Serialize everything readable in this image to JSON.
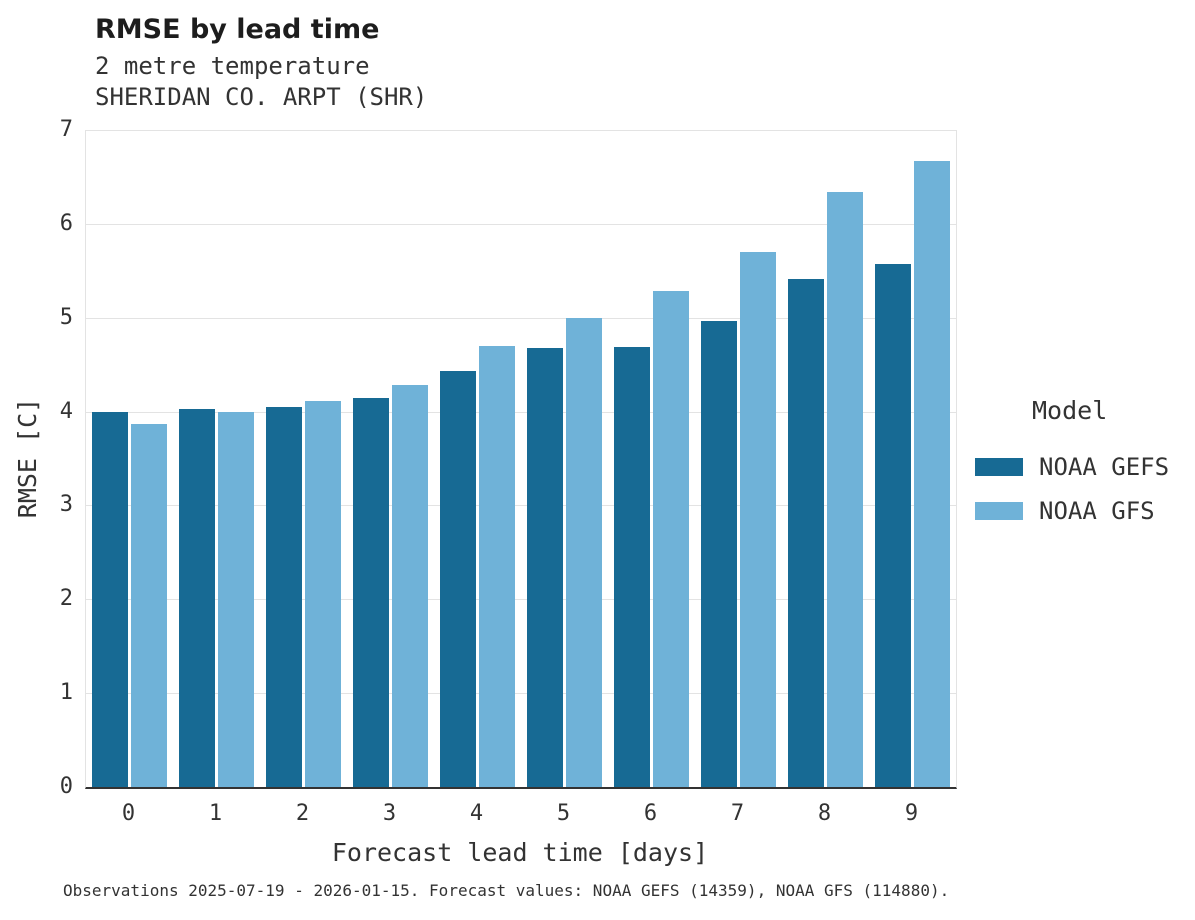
{
  "header": {
    "title": "RMSE by lead time",
    "subtitle1": "2 metre temperature",
    "subtitle2": "SHERIDAN CO. ARPT (SHR)"
  },
  "chart_data": {
    "type": "bar",
    "title": "RMSE by lead time",
    "subtitle": [
      "2 metre temperature",
      "SHERIDAN CO. ARPT (SHR)"
    ],
    "xlabel": "Forecast lead time [days]",
    "ylabel": "RMSE [C]",
    "ylim": [
      0,
      7
    ],
    "yticks": [
      0,
      1,
      2,
      3,
      4,
      5,
      6,
      7
    ],
    "grid": true,
    "legend_title": "Model",
    "legend_position": "right",
    "categories": [
      "0",
      "1",
      "2",
      "3",
      "4",
      "5",
      "6",
      "7",
      "8",
      "9"
    ],
    "series": [
      {
        "name": "NOAA GEFS",
        "color": "#176a94",
        "values": [
          4.0,
          4.03,
          4.05,
          4.15,
          4.43,
          4.68,
          4.69,
          4.97,
          5.41,
          5.57
        ]
      },
      {
        "name": "NOAA GFS",
        "color": "#6fb2d8",
        "values": [
          3.87,
          4.0,
          4.11,
          4.28,
          4.7,
          5.0,
          5.28,
          5.7,
          6.34,
          6.67
        ]
      }
    ]
  },
  "footer": {
    "note": "Observations 2025-07-19 - 2026-01-15. Forecast values: NOAA GEFS (14359), NOAA GFS (114880)."
  }
}
